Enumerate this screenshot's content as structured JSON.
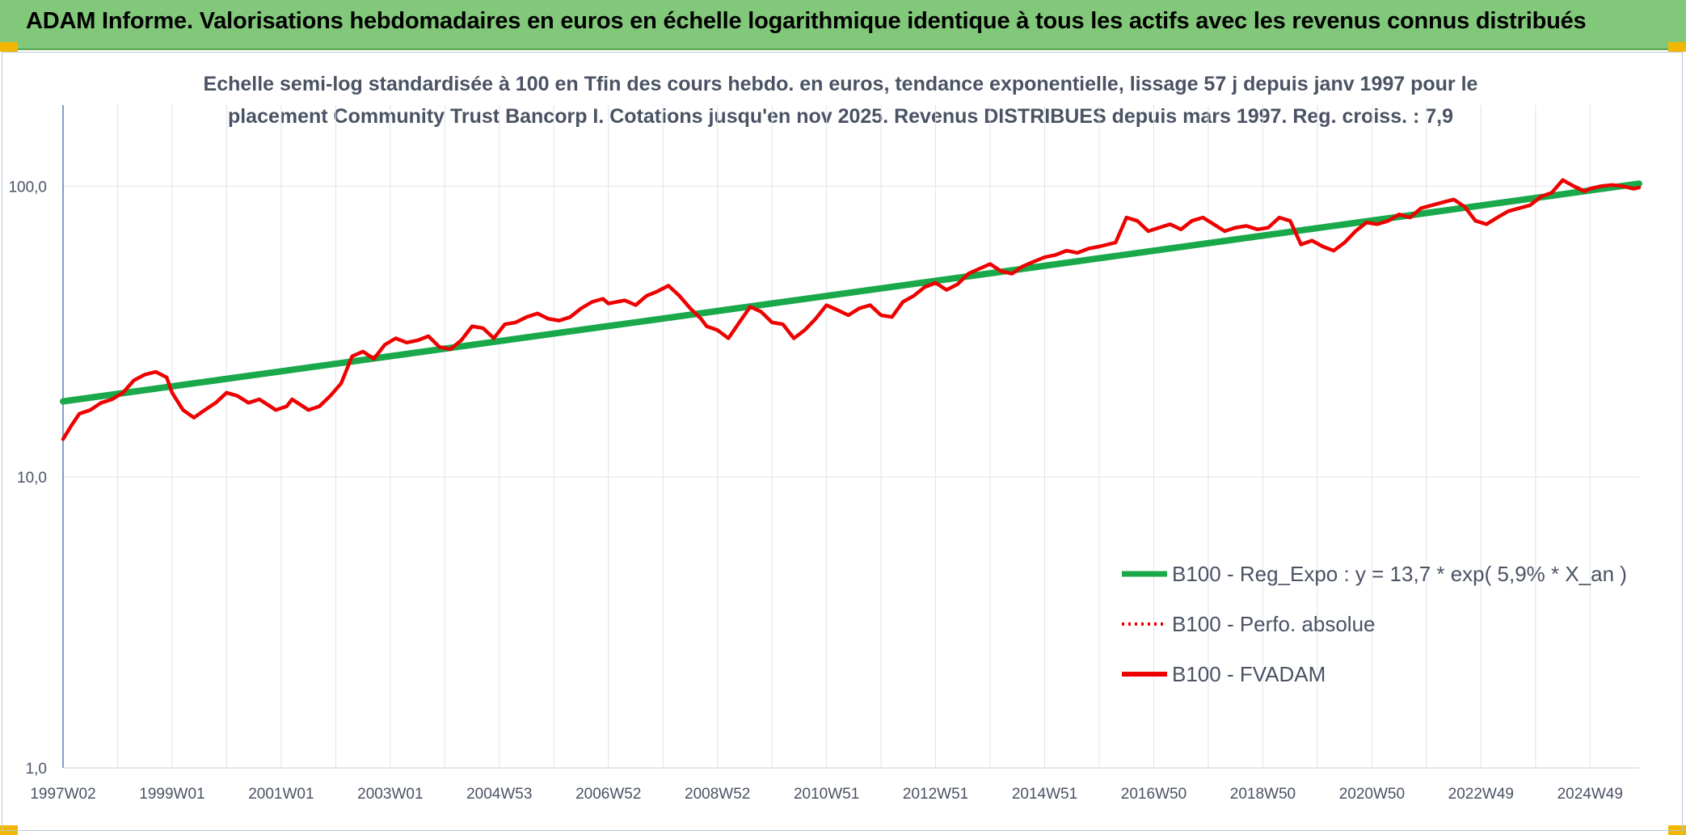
{
  "header": {
    "title": "ADAM Informe. Valorisations hebdomadaires en euros en échelle logarithmique identique à tous les actifs avec les revenus connus distribués"
  },
  "colors": {
    "banner": "#82c87a",
    "corner": "#f2b705",
    "trend": "#19a84a",
    "series": "#ee0000"
  },
  "chart_data": {
    "type": "line",
    "title_lines": [
      "Echelle semi-log standardisée à 100 en Tfin des cours hebdo. en euros, tendance exponentielle, lissage 57 j depuis janv 1997 pour le",
      "placement Community Trust Bancorp I. Cotations jusqu'en nov 2025. Revenus DISTRIBUES depuis mars 1997. Reg. croiss. : 7,9"
    ],
    "y_scale": "log",
    "ylim": [
      1,
      190
    ],
    "xlim": [
      1997.0,
      2025.9
    ],
    "y_ticks": [
      {
        "value": 1,
        "label": "1,0"
      },
      {
        "value": 10,
        "label": "10,0"
      },
      {
        "value": 100,
        "label": "100,0"
      }
    ],
    "x_ticks": [
      {
        "x": 1997.0,
        "label": "1997W02"
      },
      {
        "x": 1999.0,
        "label": "1999W01"
      },
      {
        "x": 2001.0,
        "label": "2001W01"
      },
      {
        "x": 2003.0,
        "label": "2003W01"
      },
      {
        "x": 2005.0,
        "label": "2004W53"
      },
      {
        "x": 2007.0,
        "label": "2006W52"
      },
      {
        "x": 2009.0,
        "label": "2008W52"
      },
      {
        "x": 2011.0,
        "label": "2010W51"
      },
      {
        "x": 2013.0,
        "label": "2012W51"
      },
      {
        "x": 2015.0,
        "label": "2014W51"
      },
      {
        "x": 2017.0,
        "label": "2016W50"
      },
      {
        "x": 2019.0,
        "label": "2018W50"
      },
      {
        "x": 2021.0,
        "label": "2020W50"
      },
      {
        "x": 2023.0,
        "label": "2022W49"
      },
      {
        "x": 2025.0,
        "label": "2024W49"
      }
    ],
    "grid": "vertical-and-horizontal",
    "legend_position": "bottom-right",
    "series": [
      {
        "name": "B100 - Reg_Expo : y = 13,7 * exp( 5,9% *  X_an )",
        "style": "solid-thick",
        "color": "#19a84a",
        "x": [
          1997.0,
          2025.9
        ],
        "values": [
          18.2,
          102
        ]
      },
      {
        "name": "B100 - Perfo. absolue",
        "style": "dotted",
        "color": "#ee0000",
        "x": [],
        "values": []
      },
      {
        "name": "B100 - FVADAM",
        "style": "solid",
        "color": "#ee0000",
        "x": [
          1997.0,
          1997.15,
          1997.3,
          1997.5,
          1997.7,
          1997.9,
          1998.1,
          1998.3,
          1998.5,
          1998.7,
          1998.9,
          1999.0,
          1999.2,
          1999.4,
          1999.6,
          1999.8,
          2000.0,
          2000.2,
          2000.4,
          2000.6,
          2000.8,
          2000.9,
          2001.1,
          2001.2,
          2001.3,
          2001.5,
          2001.7,
          2001.9,
          2002.1,
          2002.3,
          2002.5,
          2002.7,
          2002.9,
          2003.1,
          2003.3,
          2003.5,
          2003.7,
          2003.9,
          2004.1,
          2004.3,
          2004.5,
          2004.7,
          2004.9,
          2005.1,
          2005.3,
          2005.5,
          2005.7,
          2005.9,
          2006.1,
          2006.3,
          2006.5,
          2006.7,
          2006.9,
          2007.0,
          2007.3,
          2007.5,
          2007.7,
          2007.9,
          2008.1,
          2008.3,
          2008.5,
          2008.7,
          2008.8,
          2009.0,
          2009.2,
          2009.4,
          2009.6,
          2009.8,
          2010.0,
          2010.2,
          2010.4,
          2010.6,
          2010.8,
          2011.0,
          2011.2,
          2011.4,
          2011.6,
          2011.8,
          2012.0,
          2012.2,
          2012.4,
          2012.6,
          2012.8,
          2013.0,
          2013.2,
          2013.4,
          2013.6,
          2013.8,
          2014.0,
          2014.2,
          2014.4,
          2014.6,
          2014.8,
          2015.0,
          2015.2,
          2015.4,
          2015.6,
          2015.8,
          2016.0,
          2016.3,
          2016.5,
          2016.7,
          2016.9,
          2017.1,
          2017.3,
          2017.5,
          2017.7,
          2017.9,
          2018.1,
          2018.3,
          2018.5,
          2018.7,
          2018.9,
          2019.1,
          2019.3,
          2019.5,
          2019.7,
          2019.9,
          2020.1,
          2020.3,
          2020.5,
          2020.7,
          2020.9,
          2021.1,
          2021.3,
          2021.5,
          2021.7,
          2021.9,
          2022.1,
          2022.3,
          2022.5,
          2022.7,
          2022.9,
          2023.1,
          2023.3,
          2023.5,
          2023.7,
          2023.9,
          2024.1,
          2024.3,
          2024.5,
          2024.7,
          2024.9,
          2025.0,
          2025.2,
          2025.4,
          2025.6,
          2025.8,
          2025.9
        ],
        "values": [
          13.5,
          15.0,
          16.5,
          17.0,
          18.0,
          18.5,
          19.5,
          21.5,
          22.5,
          23.0,
          22.0,
          19.5,
          17.0,
          16.0,
          17.0,
          18.0,
          19.5,
          19.0,
          18.0,
          18.5,
          17.5,
          17.0,
          17.5,
          18.5,
          18.0,
          17.0,
          17.5,
          19.0,
          21.0,
          26.0,
          27.0,
          25.5,
          28.5,
          30.0,
          29.0,
          29.5,
          30.5,
          28.0,
          27.5,
          29.5,
          33.0,
          32.5,
          30.0,
          33.5,
          34.0,
          35.5,
          36.5,
          35.0,
          34.5,
          35.5,
          38.0,
          40.0,
          41.0,
          39.5,
          40.5,
          39.0,
          42.0,
          43.5,
          45.5,
          42.0,
          38.0,
          35.0,
          33.0,
          32.0,
          30.0,
          34.0,
          38.5,
          37.0,
          34.0,
          33.5,
          30.0,
          32.0,
          35.0,
          39.0,
          37.5,
          36.0,
          38.0,
          39.0,
          36.0,
          35.5,
          40.0,
          42.0,
          45.0,
          46.5,
          44.0,
          46.0,
          50.0,
          52.0,
          54.0,
          51.0,
          50.0,
          53.0,
          55.0,
          57.0,
          58.0,
          60.0,
          59.0,
          61.0,
          62.0,
          64.0,
          78.0,
          76.0,
          70.0,
          72.0,
          74.0,
          71.0,
          76.0,
          78.0,
          74.0,
          70.0,
          72.0,
          73.0,
          71.0,
          72.0,
          78.0,
          76.0,
          63.0,
          65.0,
          62.0,
          60.0,
          64.0,
          70.0,
          75.0,
          74.0,
          76.0,
          80.0,
          78.0,
          84.0,
          86.0,
          88.0,
          90.0,
          85.0,
          76.0,
          74.0,
          78.0,
          82.0,
          84.0,
          86.0,
          92.0,
          95.0,
          105.0,
          100.0,
          96.0,
          98.0,
          100.0,
          101.0,
          100.0,
          98.0,
          99.0
        ]
      }
    ]
  }
}
